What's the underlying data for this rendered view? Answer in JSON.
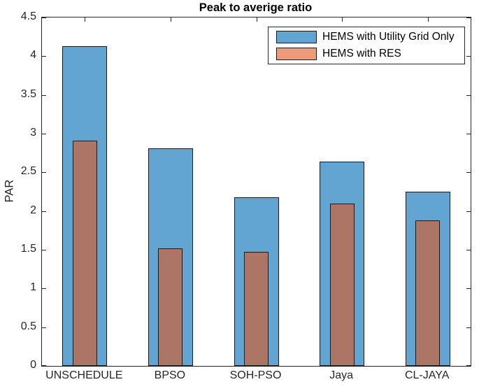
{
  "chart_data": {
    "type": "bar",
    "title": "Peak to averige ratio",
    "xlabel": "",
    "ylabel": "PAR",
    "categories": [
      "UNSCHEDULE",
      "BPSO",
      "SOH-PSO",
      "Jaya",
      "CL-JAYA"
    ],
    "series": [
      {
        "name": "HEMS with Utility Grid Only",
        "color": "#62A5D2",
        "legend_color": "#62A5D2",
        "values": [
          4.13,
          2.81,
          2.18,
          2.64,
          2.25
        ]
      },
      {
        "name": "HEMS with RES",
        "color": "#AC7566",
        "legend_color": "#EC9B7B",
        "values": [
          2.91,
          1.52,
          1.47,
          2.1,
          1.88
        ]
      }
    ],
    "ylim": [
      0,
      4.5
    ],
    "ytick_step": 0.5,
    "yticks": [
      "0",
      "0.5",
      "1",
      "1.5",
      "2",
      "2.5",
      "3",
      "3.5",
      "4",
      "4.5"
    ],
    "grid": false,
    "legend_position": "top-right",
    "bar_edge_color": "#1a1a1a",
    "axis_color": "#262626",
    "background_color": "#ffffff"
  }
}
